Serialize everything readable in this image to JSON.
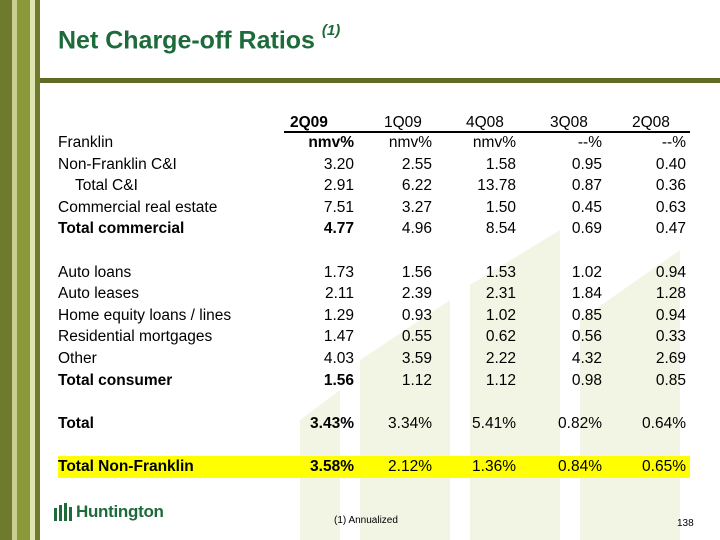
{
  "title": {
    "text": "Net Charge-off Ratios",
    "note": "(1)"
  },
  "table": {
    "headers": [
      "2Q09",
      "1Q09",
      "4Q08",
      "3Q08",
      "2Q08"
    ],
    "rows": [
      {
        "label": "Franklin",
        "values": [
          "nmv%",
          "nmv%",
          "nmv%",
          "--%",
          "--%"
        ]
      },
      {
        "label": "Non-Franklin C&I",
        "values": [
          "3.20",
          "2.55",
          "1.58",
          "0.95",
          "0.40"
        ]
      },
      {
        "label": "Total C&I",
        "values": [
          "2.91",
          "6.22",
          "13.78",
          "0.87",
          "0.36"
        ]
      },
      {
        "label": "Commercial real estate",
        "values": [
          "7.51",
          "3.27",
          "1.50",
          "0.45",
          "0.63"
        ]
      },
      {
        "label": "Total commercial",
        "values": [
          "4.77",
          "4.96",
          "8.54",
          "0.69",
          "0.47"
        ]
      },
      {
        "label": "Auto loans",
        "values": [
          "1.73",
          "1.56",
          "1.53",
          "1.02",
          "0.94"
        ]
      },
      {
        "label": "Auto leases",
        "values": [
          "2.11",
          "2.39",
          "2.31",
          "1.84",
          "1.28"
        ]
      },
      {
        "label": "Home equity loans / lines",
        "values": [
          "1.29",
          "0.93",
          "1.02",
          "0.85",
          "0.94"
        ]
      },
      {
        "label": "Residential mortgages",
        "values": [
          "1.47",
          "0.55",
          "0.62",
          "0.56",
          "0.33"
        ]
      },
      {
        "label": "Other",
        "values": [
          "4.03",
          "3.59",
          "2.22",
          "4.32",
          "2.69"
        ]
      },
      {
        "label": "Total consumer",
        "values": [
          "1.56",
          "1.12",
          "1.12",
          "0.98",
          "0.85"
        ]
      },
      {
        "label": "Total",
        "values": [
          "3.43%",
          "3.34%",
          "5.41%",
          "0.82%",
          "0.64%"
        ]
      },
      {
        "label": "Total Non-Franklin",
        "values": [
          "3.58%",
          "2.12%",
          "1.36%",
          "0.84%",
          "0.65%"
        ]
      }
    ]
  },
  "footer": {
    "logo_text": "Huntington",
    "footnote": "(1)  Annualized",
    "page_number": "138"
  },
  "colors": {
    "title": "#1d6b3a",
    "highlight": "#ffff00",
    "stripe_dark": "#6e7a2e",
    "watermark": "#f3f5e4"
  }
}
